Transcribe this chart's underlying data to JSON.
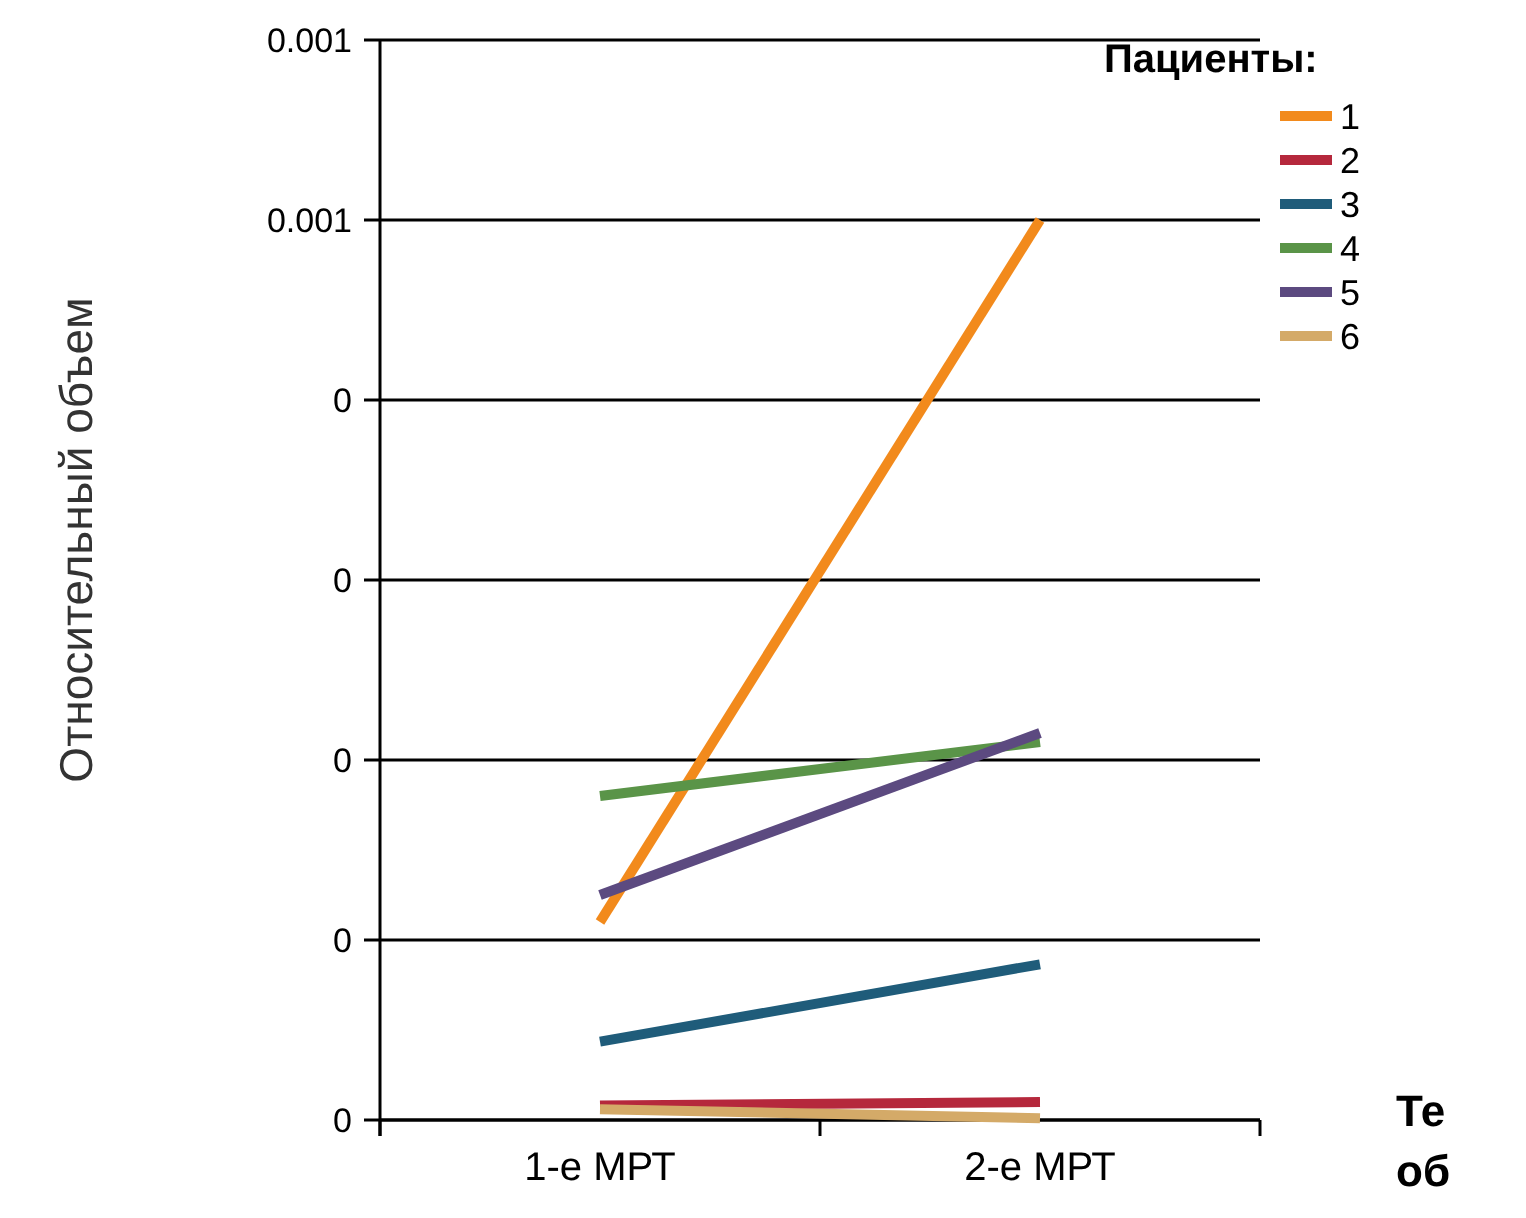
{
  "chart_data": {
    "type": "line",
    "ylabel": "Относительный объем",
    "legend_title": "Пациенты:",
    "categories": [
      "1-е МРТ",
      "2-е МРТ"
    ],
    "series": [
      {
        "name": "1",
        "color": "#f28a1c",
        "values": [
          0.00022,
          0.001
        ]
      },
      {
        "name": "2",
        "color": "#b5283c",
        "values": [
          1.6e-05,
          2e-05
        ]
      },
      {
        "name": "3",
        "color": "#1f5c7a",
        "values": [
          8.7e-05,
          0.000173
        ]
      },
      {
        "name": "4",
        "color": "#5a9448",
        "values": [
          0.00036,
          0.00042
        ]
      },
      {
        "name": "5",
        "color": "#5c4a80",
        "values": [
          0.00025,
          0.00043
        ]
      },
      {
        "name": "6",
        "color": "#d4aa68",
        "values": [
          1.2e-05,
          2e-06
        ]
      }
    ],
    "ylim": [
      0,
      0.0012
    ],
    "yticks": [
      {
        "value": 0,
        "label": "0"
      },
      {
        "value": 0.0002,
        "label": "0"
      },
      {
        "value": 0.0004,
        "label": "0"
      },
      {
        "value": 0.0006,
        "label": "0"
      },
      {
        "value": 0.0008,
        "label": "0"
      },
      {
        "value": 0.001,
        "label": "0.001"
      },
      {
        "value": 0.0012,
        "label": "0.001"
      }
    ],
    "grid": "y",
    "legend": "right",
    "marker": "none",
    "line_style": "solid",
    "annotations": [
      "Те об"
    ]
  }
}
